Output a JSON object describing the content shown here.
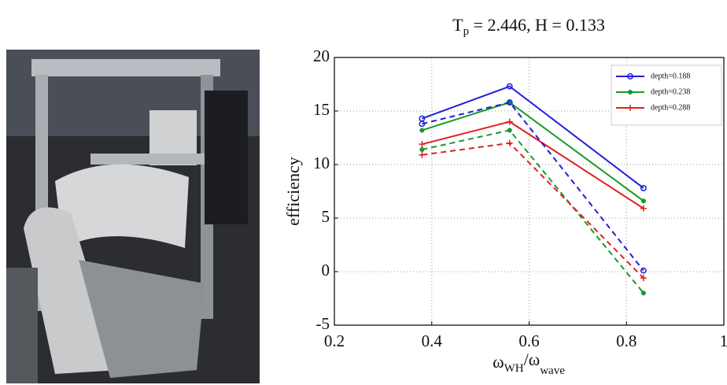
{
  "chart_data": {
    "type": "line",
    "title": {
      "main": "T",
      "sub": "p",
      "rest": " = 2.446, H = 0.133"
    },
    "y_label": "efficiency",
    "x_label": {
      "a": "ω",
      "a_sub": "WH",
      "b": "/ω",
      "b_sub": "wave"
    },
    "x": [
      0.38,
      0.56,
      0.835
    ],
    "xlim": [
      0.2,
      1
    ],
    "xticks": [
      0.2,
      0.4,
      0.6,
      0.8,
      1
    ],
    "ylim": [
      -5,
      20
    ],
    "yticks": [
      -5,
      0,
      5,
      10,
      15,
      20
    ],
    "grid": true,
    "legend": "upper right",
    "series": [
      {
        "name": "depth=0.188",
        "color": "#1f1fd6",
        "marker": "circle",
        "values": [
          14.3,
          17.3,
          7.8
        ]
      },
      {
        "name": "depth=0.238",
        "color": "#1a9a2a",
        "marker": "dot",
        "values": [
          13.2,
          15.8,
          6.6
        ]
      },
      {
        "name": "depth=0.288",
        "color": "#e02020",
        "marker": "plus",
        "values": [
          11.9,
          14.0,
          5.9
        ]
      },
      {
        "color": "#1f1fd6",
        "marker": "circle",
        "dash": true,
        "values": [
          13.8,
          15.8,
          0.1
        ]
      },
      {
        "color": "#1a9a2a",
        "marker": "dot",
        "dash": true,
        "values": [
          11.4,
          13.2,
          -2.0
        ]
      },
      {
        "color": "#e02020",
        "marker": "plus",
        "dash": true,
        "values": [
          10.9,
          12.0,
          -0.6
        ]
      }
    ]
  }
}
